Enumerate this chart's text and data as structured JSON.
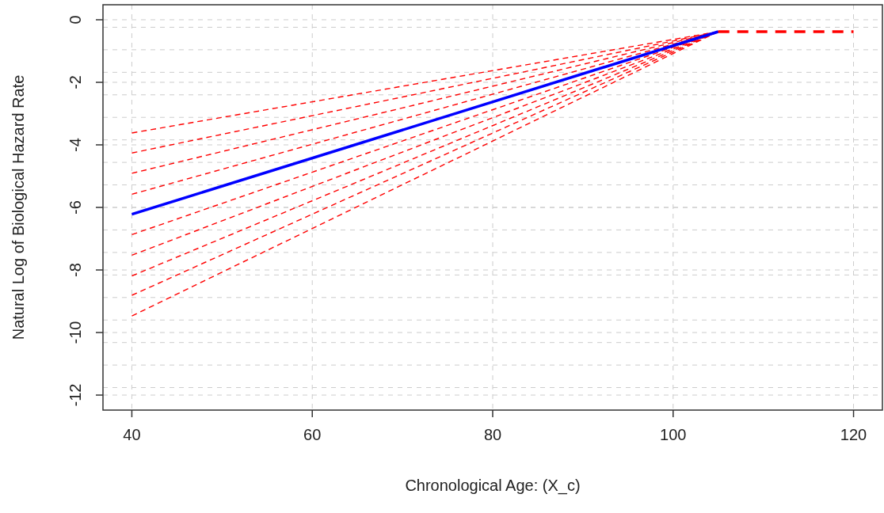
{
  "chart_data": {
    "type": "line",
    "xlabel": "Chronological Age: (X_c)",
    "ylabel": "Natural Log of Biological Hazard Rate",
    "xlim": [
      36.8,
      123.2
    ],
    "ylim": [
      -12.48,
      0.48
    ],
    "xticks": [
      40,
      60,
      80,
      100,
      120
    ],
    "yticks": [
      0,
      -2,
      -4,
      -6,
      -8,
      -10,
      -12,
      {
        "value": -0.24,
        "label": null
      },
      {
        "value": -0.96,
        "label": null
      },
      {
        "value": -1.68,
        "label": null
      },
      {
        "value": -2.4,
        "label": null
      },
      {
        "value": -3.12,
        "label": null
      },
      {
        "value": -3.84,
        "label": null
      },
      {
        "value": -4.56,
        "label": null
      },
      {
        "value": -5.28,
        "label": null
      },
      {
        "value": -6,
        "label": null
      },
      {
        "value": -6.72,
        "label": null
      },
      {
        "value": -7.44,
        "label": null
      },
      {
        "value": -8.16,
        "label": null
      },
      {
        "value": -8.88,
        "label": null
      },
      {
        "value": -9.6,
        "label": null
      },
      {
        "value": -10.32,
        "label": null
      },
      {
        "value": -11.04,
        "label": null
      },
      {
        "value": -11.76,
        "label": null
      }
    ],
    "grid": true,
    "marker": "none",
    "series": [
      {
        "color": "#ff0000",
        "line_style": "dashed",
        "x": [
          40,
          105
        ],
        "values": [
          -3.62,
          -0.38
        ]
      },
      {
        "color": "#ff0000",
        "line_style": "dashed",
        "x": [
          40,
          105
        ],
        "values": [
          -4.26,
          -0.38
        ]
      },
      {
        "color": "#ff0000",
        "line_style": "dashed",
        "x": [
          40,
          105
        ],
        "values": [
          -4.91,
          -0.38
        ]
      },
      {
        "color": "#ff0000",
        "line_style": "dashed",
        "x": [
          40,
          105
        ],
        "values": [
          -5.58,
          -0.38
        ]
      },
      {
        "color": "#ff0000",
        "line_style": "dashed",
        "x": [
          40,
          105
        ],
        "values": [
          -6.87,
          -0.38
        ]
      },
      {
        "color": "#ff0000",
        "line_style": "dashed",
        "x": [
          40,
          105
        ],
        "values": [
          -7.53,
          -0.38
        ]
      },
      {
        "color": "#ff0000",
        "line_style": "dashed",
        "x": [
          40,
          105
        ],
        "values": [
          -8.19,
          -0.38
        ]
      },
      {
        "color": "#ff0000",
        "line_style": "dashed",
        "x": [
          40,
          105
        ],
        "values": [
          -8.81,
          -0.38
        ]
      },
      {
        "color": "#ff0000",
        "line_style": "dashed",
        "x": [
          40,
          105
        ],
        "values": [
          -9.47,
          -0.38
        ]
      },
      {
        "color": "#0000ff",
        "line_style": "solid",
        "x": [
          40,
          105
        ],
        "values": [
          -6.22,
          -0.38
        ]
      },
      {
        "color": "#ff0000",
        "line_style": "dashed",
        "x": [
          105,
          120
        ],
        "values": [
          -0.38,
          -0.38
        ]
      }
    ]
  }
}
